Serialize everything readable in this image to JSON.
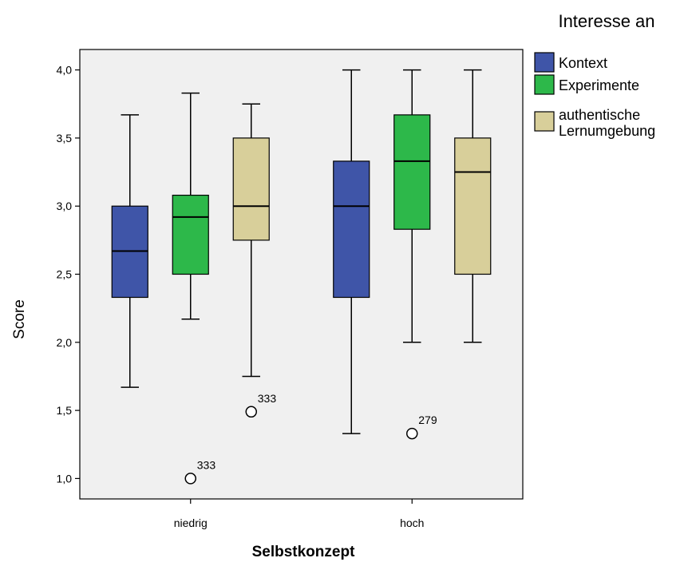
{
  "chart_data": {
    "type": "boxplot",
    "xlabel": "Selbstkonzept",
    "ylabel": "Score",
    "legend_title": "Interesse an",
    "legend_placement": "top-right",
    "ylim": [
      0.85,
      4.15
    ],
    "yticks": [
      "1,0",
      "1,5",
      "2,0",
      "2,5",
      "3,0",
      "3,5",
      "4,0"
    ],
    "ytick_values": [
      1.0,
      1.5,
      2.0,
      2.5,
      3.0,
      3.5,
      4.0
    ],
    "categories": [
      "niedrig",
      "hoch"
    ],
    "series": [
      {
        "name": "Kontext",
        "color": "#3f55a8",
        "boxes": [
          {
            "min": 1.67,
            "q1": 2.33,
            "median": 2.67,
            "q3": 3.0,
            "max": 3.67,
            "outliers": []
          },
          {
            "min": 1.33,
            "q1": 2.33,
            "median": 3.0,
            "q3": 3.33,
            "max": 4.0,
            "outliers": []
          }
        ]
      },
      {
        "name": "Experimente",
        "color": "#2db84a",
        "boxes": [
          {
            "min": 2.17,
            "q1": 2.5,
            "median": 2.92,
            "q3": 3.08,
            "max": 3.83,
            "outliers": [
              {
                "value": 1.0,
                "label": "333"
              }
            ]
          },
          {
            "min": 2.0,
            "q1": 2.83,
            "median": 3.33,
            "q3": 3.67,
            "max": 4.0,
            "outliers": [
              {
                "value": 1.33,
                "label": "279"
              }
            ]
          }
        ]
      },
      {
        "name": "authentische Lernumgebung",
        "legend_lines": [
          "authentische",
          "Lernumgebung"
        ],
        "color": "#d8cf9a",
        "boxes": [
          {
            "min": 1.75,
            "q1": 2.75,
            "median": 3.0,
            "q3": 3.5,
            "max": 3.75,
            "outliers": [
              {
                "value": 1.49,
                "label": "333"
              }
            ]
          },
          {
            "min": 2.0,
            "q1": 2.5,
            "median": 3.25,
            "q3": 3.5,
            "max": 4.0,
            "outliers": []
          }
        ]
      }
    ]
  }
}
